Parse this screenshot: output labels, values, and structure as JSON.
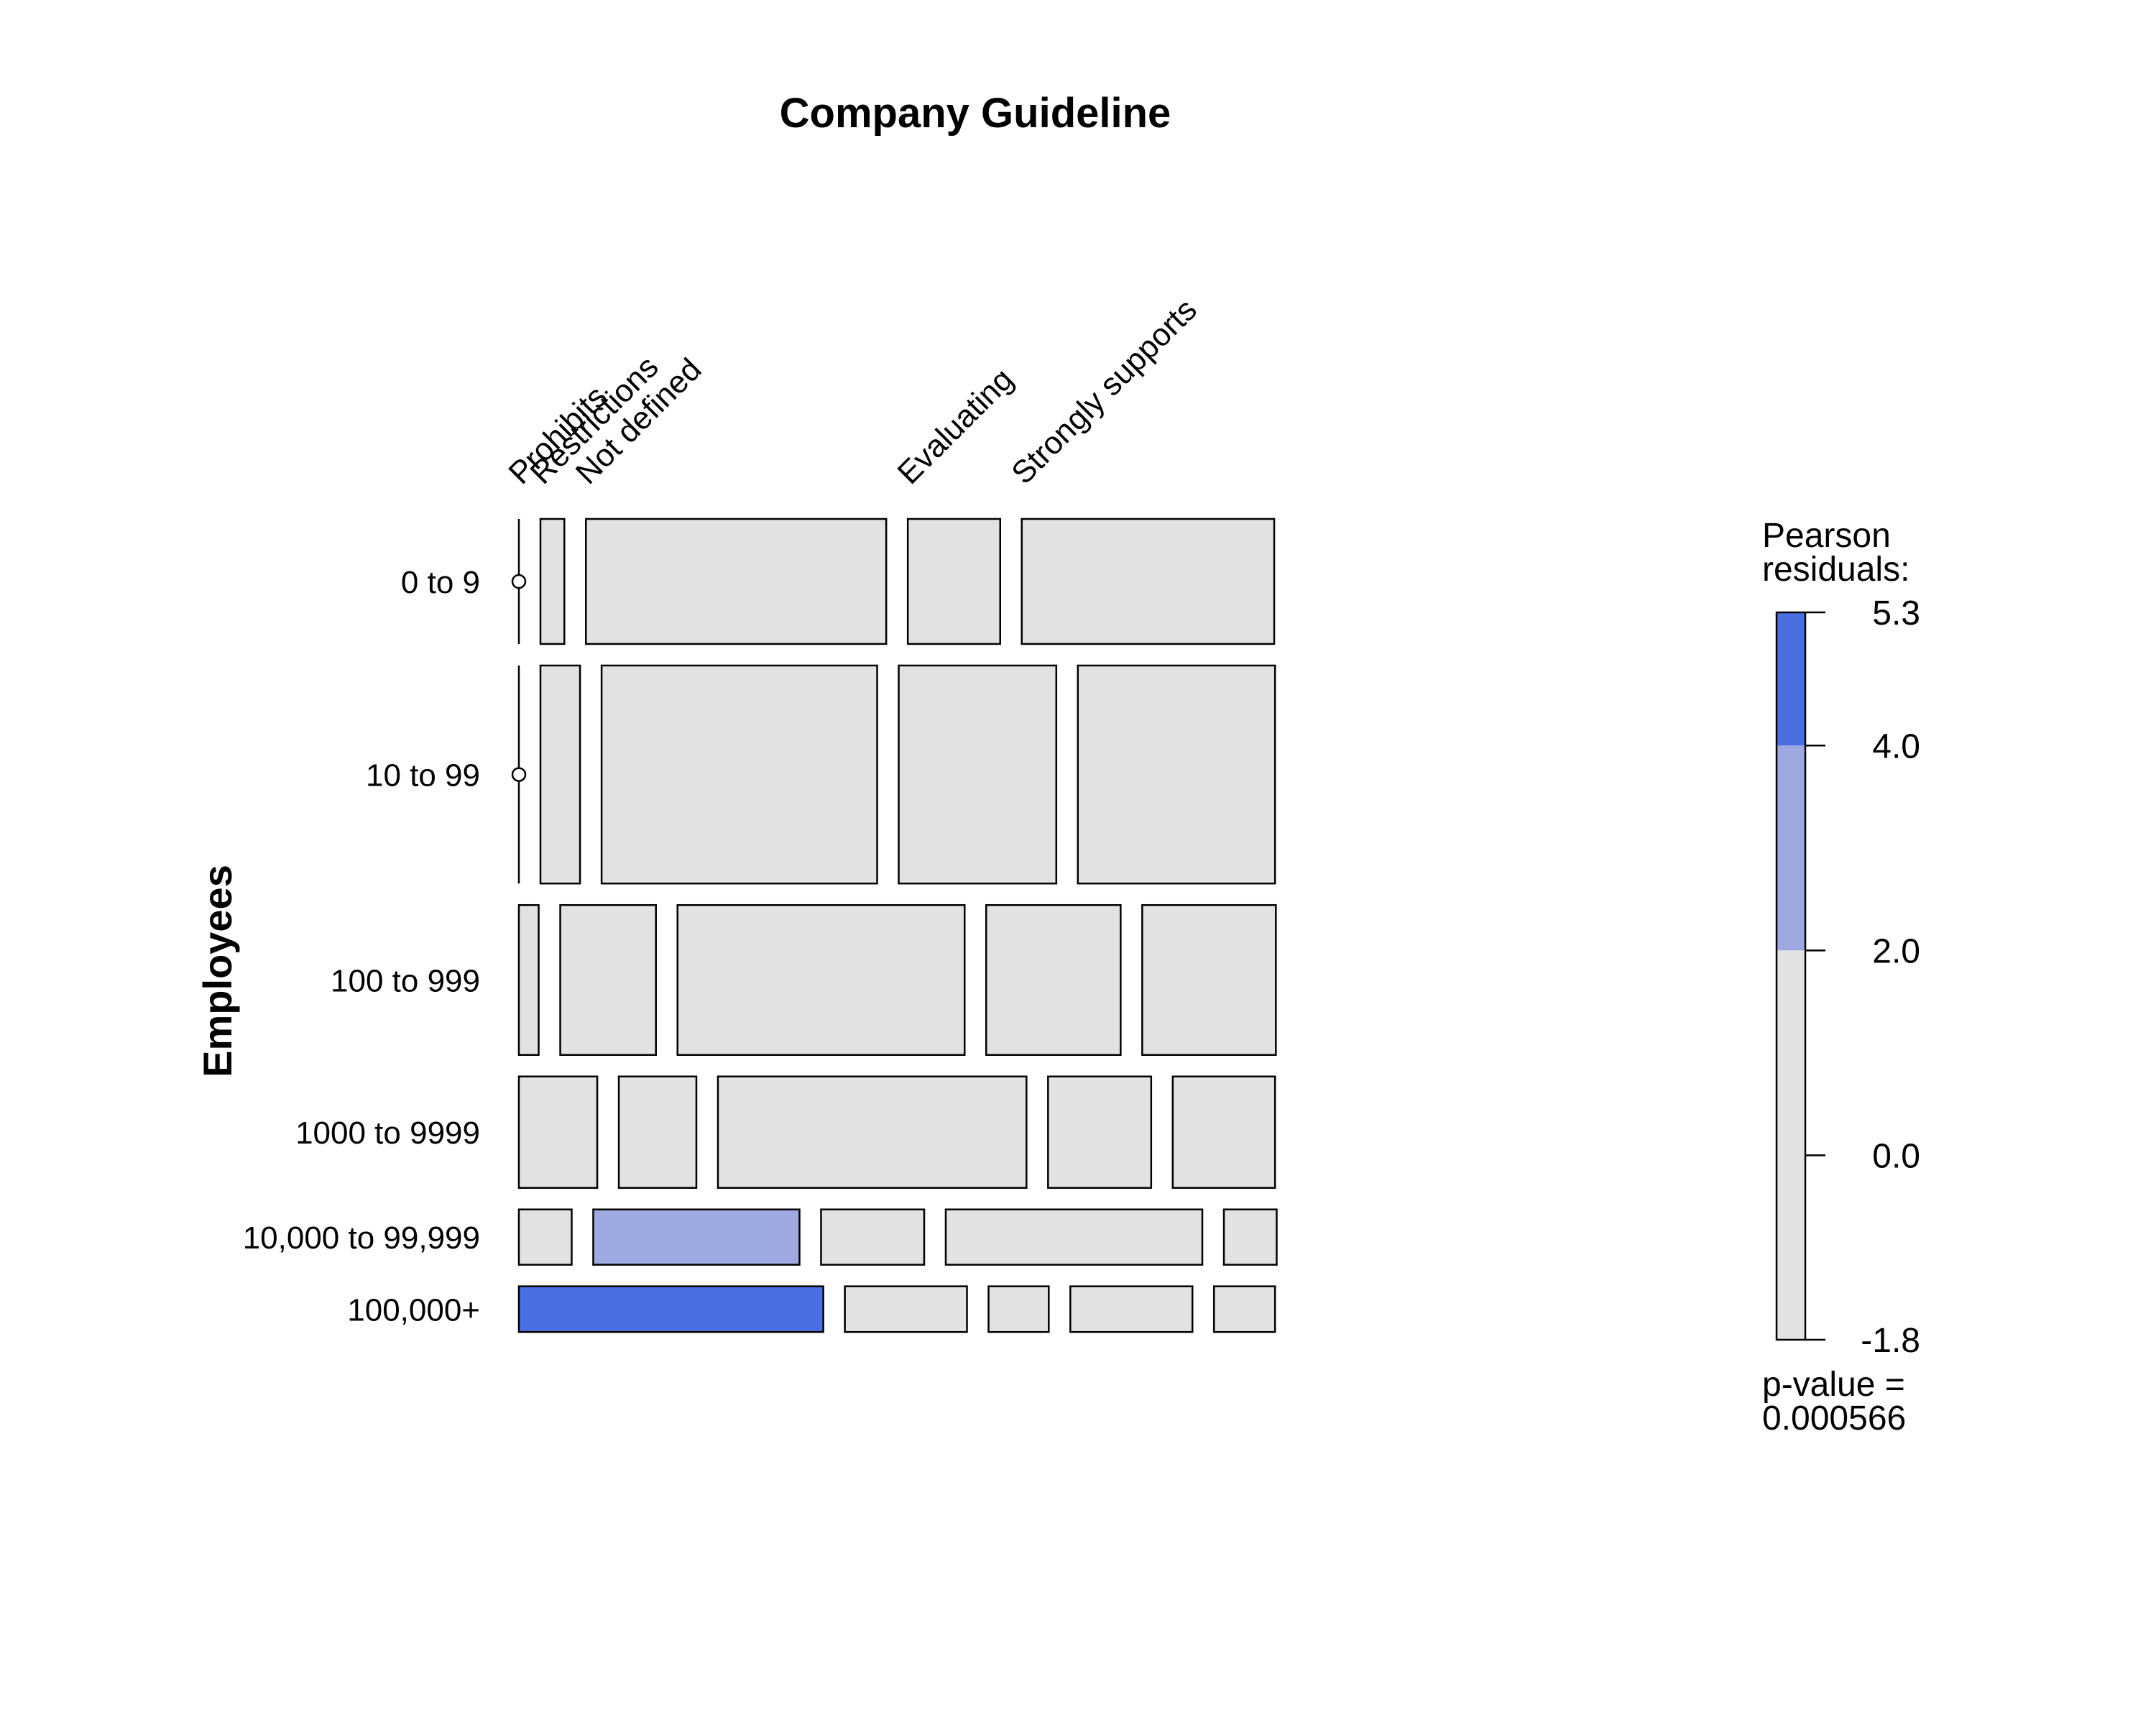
{
  "chart_data": {
    "type": "mosaic",
    "title": "Company Guideline",
    "row_variable": "Employees",
    "rows": [
      "0 to 9",
      "10 to 99",
      "100 to 999",
      "1000 to 9999",
      "10,000 to 99,999",
      "100,000+"
    ],
    "columns": [
      "Prohibits",
      "Restrictions",
      "Not defined",
      "Evaluating",
      "Strongly supports"
    ],
    "row_shares": [
      0.156,
      0.272,
      0.187,
      0.139,
      0.069,
      0.057
    ],
    "cell_shares": [
      [
        0.0,
        0.029,
        0.364,
        0.112,
        0.306
      ],
      [
        0.0,
        0.048,
        0.334,
        0.191,
        0.239
      ],
      [
        0.024,
        0.116,
        0.348,
        0.163,
        0.162
      ],
      [
        0.095,
        0.094,
        0.374,
        0.125,
        0.124
      ],
      [
        0.064,
        0.25,
        0.125,
        0.311,
        0.064
      ],
      [
        0.369,
        0.148,
        0.073,
        0.148,
        0.074
      ]
    ],
    "residual_band": [
      [
        "neutral",
        "neutral",
        "neutral",
        "neutral",
        "neutral"
      ],
      [
        "neutral",
        "neutral",
        "neutral",
        "neutral",
        "neutral"
      ],
      [
        "neutral",
        "neutral",
        "neutral",
        "neutral",
        "neutral"
      ],
      [
        "neutral",
        "neutral",
        "neutral",
        "neutral",
        "neutral"
      ],
      [
        "neutral",
        "moderate",
        "neutral",
        "neutral",
        "neutral"
      ],
      [
        "strong",
        "neutral",
        "neutral",
        "neutral",
        "neutral"
      ]
    ],
    "legend": {
      "title_line1": "Pearson",
      "title_line2": "residuals:",
      "tick_values": [
        5.3,
        4.0,
        2.0,
        0.0,
        -1.8
      ],
      "tick_labels": [
        "5.3",
        "4.0",
        "2.0",
        "0.0",
        "-1.8"
      ],
      "bands": [
        {
          "from": 4.0,
          "to": 5.3,
          "level": "strong"
        },
        {
          "from": 2.0,
          "to": 4.0,
          "level": "moderate"
        },
        {
          "from": -1.8,
          "to": 2.0,
          "level": "neutral"
        }
      ],
      "pvalue_line1": "p-value =",
      "pvalue_line2": "0.000566"
    },
    "colors": {
      "strong": "#4a6fe3",
      "moderate": "#9ea9e2",
      "neutral": "#e2e2e2",
      "stroke": "#000000"
    }
  }
}
